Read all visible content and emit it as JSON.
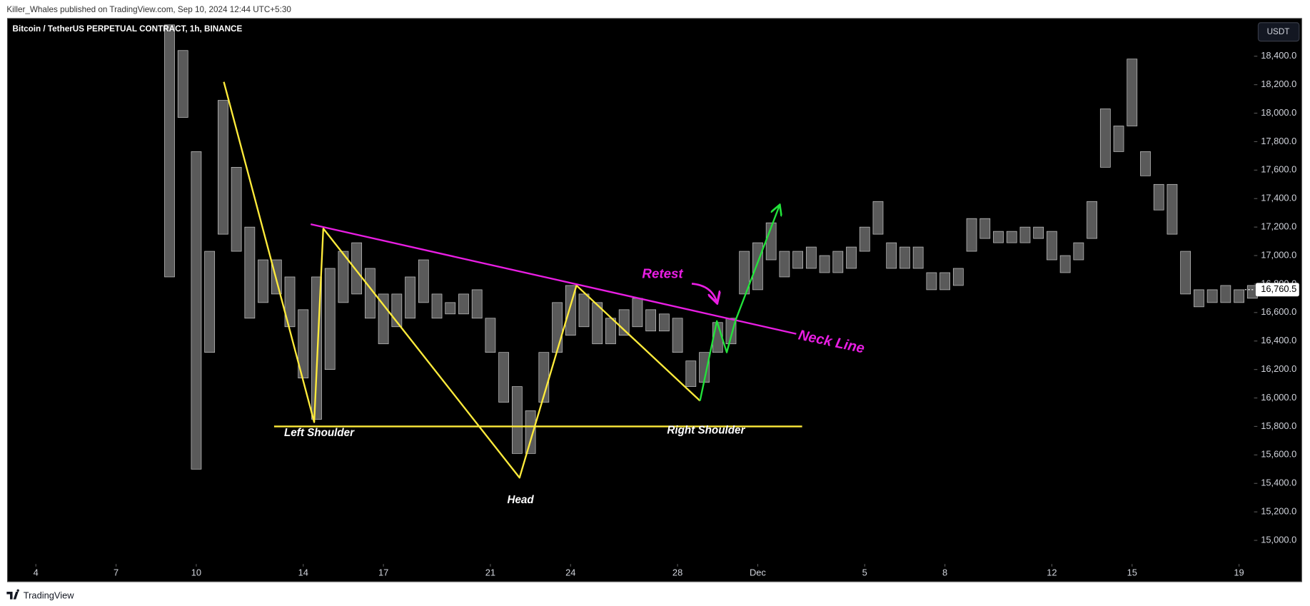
{
  "header": {
    "byline": "Killer_Whales published on TradingView.com, Sep 10, 2024 12:44 UTC+5:30"
  },
  "footer": {
    "brand": "TradingView"
  },
  "chart_data": {
    "type": "range",
    "title": "Bitcoin / TetherUS PERPETUAL CONTRACT, 1h, BINANCE",
    "currency": "USDT",
    "color": "#c8c8c8",
    "xlim": [
      -1.06,
      45.53
    ],
    "ylim": [
      14710,
      18665
    ],
    "xticks": [
      {
        "value": 0,
        "label": "4"
      },
      {
        "value": 3,
        "label": "7"
      },
      {
        "value": 6,
        "label": "10"
      },
      {
        "value": 10,
        "label": "14"
      },
      {
        "value": 13,
        "label": "17"
      },
      {
        "value": 17,
        "label": "21"
      },
      {
        "value": 20,
        "label": "24"
      },
      {
        "value": 24,
        "label": "28"
      },
      {
        "value": 27,
        "label": "Dec"
      },
      {
        "value": 31,
        "label": "5"
      },
      {
        "value": 34,
        "label": "8"
      },
      {
        "value": 38,
        "label": "12"
      },
      {
        "value": 41,
        "label": "15"
      },
      {
        "value": 45,
        "label": "19"
      }
    ],
    "yticks": [
      {
        "value": 15000,
        "label": "15,000.0"
      },
      {
        "value": 15200,
        "label": "15,200.0"
      },
      {
        "value": 15400,
        "label": "15,400.0"
      },
      {
        "value": 15600,
        "label": "15,600.0"
      },
      {
        "value": 15800,
        "label": "15,800.0"
      },
      {
        "value": 16000,
        "label": "16,000.0"
      },
      {
        "value": 16200,
        "label": "16,200.0"
      },
      {
        "value": 16400,
        "label": "16,400.0"
      },
      {
        "value": 16600,
        "label": "16,600.0"
      },
      {
        "value": 16800,
        "label": "16,800.0"
      },
      {
        "value": 17000,
        "label": "17,000.0"
      },
      {
        "value": 17200,
        "label": "17,200.0"
      },
      {
        "value": 17400,
        "label": "17,400.0"
      },
      {
        "value": 17600,
        "label": "17,600.0"
      },
      {
        "value": 17800,
        "label": "17,800.0"
      },
      {
        "value": 18000,
        "label": "18,000.0"
      },
      {
        "value": 18200,
        "label": "18,200.0"
      },
      {
        "value": 18400,
        "label": "18,400.0"
      }
    ],
    "last_price": {
      "value": 16760.5,
      "label": "16,760.5"
    },
    "x": [
      5,
      5.5,
      6,
      6.5,
      7,
      7.5,
      8,
      8.5,
      9,
      9.5,
      10,
      10.5,
      11,
      11.5,
      12,
      12.5,
      13,
      13.5,
      14,
      14.5,
      15,
      15.5,
      16,
      16.5,
      17,
      17.5,
      18,
      18.5,
      19,
      19.5,
      20,
      20.5,
      21,
      21.5,
      22,
      22.5,
      23,
      23.5,
      24,
      24.5,
      25,
      25.5,
      26,
      26.5,
      27,
      27.5,
      28,
      28.5,
      29,
      29.5,
      30,
      30.5,
      31,
      31.5,
      32,
      32.5,
      33,
      33.5,
      34,
      34.5,
      35,
      35.5,
      36,
      36.5,
      37,
      37.5,
      38,
      38.5,
      39,
      39.5,
      40,
      40.5,
      41,
      41.5,
      42,
      42.5,
      43,
      43.5,
      44,
      44.5,
      45,
      45.5
    ],
    "high": [
      18620,
      18440,
      17730,
      17030,
      18090,
      17620,
      17200,
      16970,
      16970,
      16850,
      16620,
      16850,
      16910,
      17030,
      17090,
      16910,
      16730,
      16730,
      16850,
      16970,
      16730,
      16670,
      16730,
      16760,
      16560,
      16320,
      16080,
      15910,
      16320,
      16670,
      16790,
      16730,
      16670,
      16560,
      16620,
      16700,
      16620,
      16590,
      16560,
      16260,
      16320,
      16530,
      16560,
      17030,
      17090,
      17230,
      17030,
      17030,
      17060,
      17000,
      17030,
      17060,
      17200,
      17380,
      17090,
      17060,
      17060,
      16880,
      16880,
      16910,
      17260,
      17260,
      17170,
      17170,
      17200,
      17200,
      17170,
      17000,
      17090,
      17380,
      18030,
      17910,
      18380,
      17730,
      17500,
      17500,
      17030,
      16760,
      16760,
      16790,
      16760,
      16790
    ],
    "low": [
      16850,
      17970,
      15500,
      16320,
      17150,
      17030,
      16560,
      16670,
      16730,
      16500,
      16140,
      15850,
      16200,
      16670,
      16730,
      16560,
      16380,
      16500,
      16560,
      16670,
      16560,
      16590,
      16590,
      16560,
      16320,
      15970,
      15610,
      15610,
      15970,
      16320,
      16440,
      16500,
      16380,
      16380,
      16440,
      16500,
      16470,
      16470,
      16320,
      16080,
      16110,
      16320,
      16380,
      16730,
      16760,
      16970,
      16850,
      16910,
      16910,
      16880,
      16880,
      16910,
      17030,
      17150,
      16910,
      16910,
      16910,
      16760,
      16760,
      16790,
      17030,
      17120,
      17090,
      17090,
      17090,
      17120,
      16970,
      16880,
      16970,
      17120,
      17620,
      17730,
      17910,
      17560,
      17320,
      17150,
      16730,
      16640,
      16670,
      16670,
      16670,
      16700
    ],
    "drawings": [
      {
        "color": "#ffeb3b",
        "x": [
          7.03,
          10.41,
          10.75,
          18.09,
          20.22,
          24.84
        ],
        "y": [
          18220,
          15830,
          17190,
          15440,
          16790,
          15980
        ]
      },
      {
        "color": "#ffeb3b",
        "x": [
          8.91,
          28.66
        ],
        "y": [
          15800,
          15800
        ]
      },
      {
        "color": "#e91ee3",
        "x": [
          10.28,
          28.44
        ],
        "y": [
          17220,
          16450
        ]
      },
      {
        "color": "#22e33a",
        "x": [
          24.84,
          25.47,
          25.84,
          26.16,
          27.81
        ],
        "y": [
          15980,
          16540,
          16320,
          16540,
          17350
        ],
        "arrow": true
      }
    ],
    "annotations": [
      {
        "text": "Left Shoulder",
        "color": "#ffffff"
      },
      {
        "text": "Head",
        "color": "#ffffff"
      },
      {
        "text": "Right Shoulder",
        "color": "#ffffff"
      },
      {
        "text": "Retest",
        "color": "#e91ee3"
      },
      {
        "text": "Neck Line",
        "color": "#e91ee3"
      }
    ]
  }
}
